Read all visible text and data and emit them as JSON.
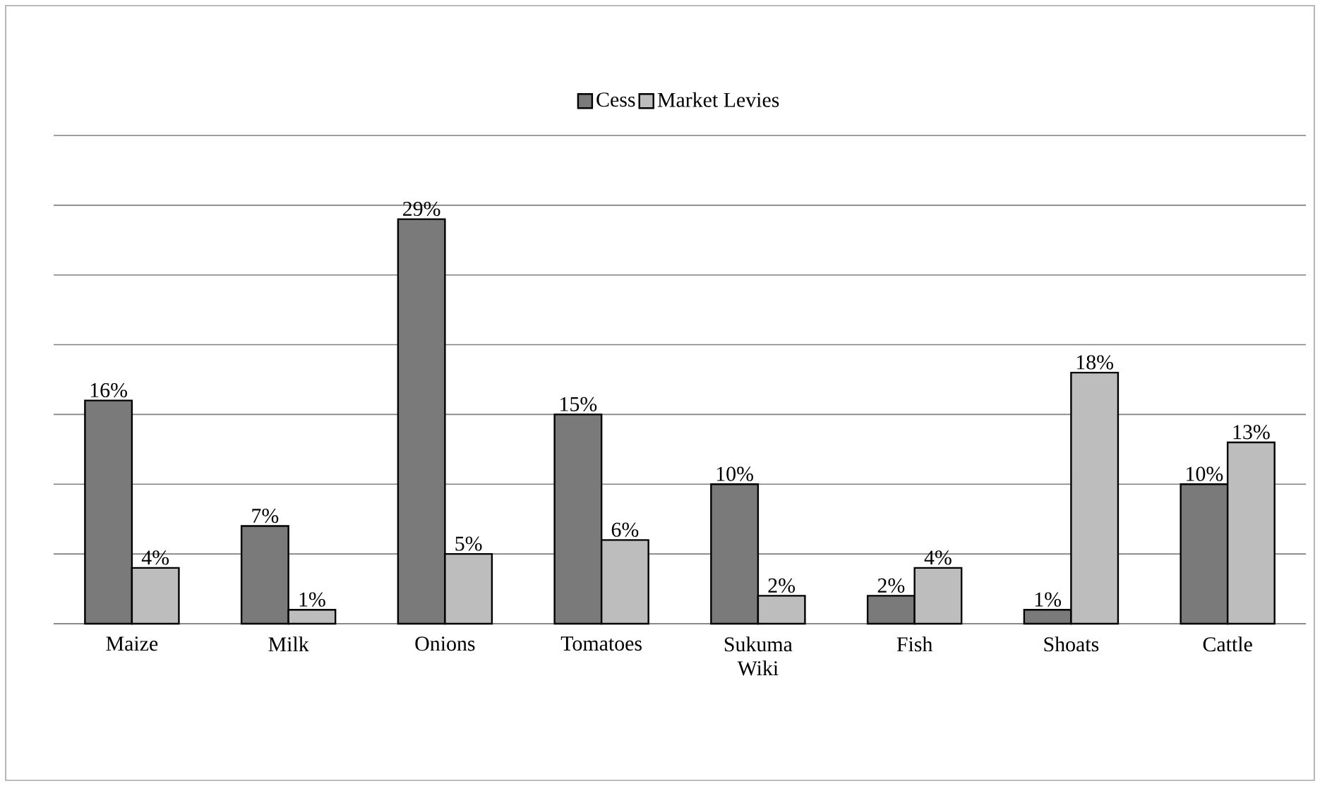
{
  "chart_data": {
    "type": "bar",
    "categories": [
      "Maize",
      "Milk",
      "Onions",
      "Tomatoes",
      "Sukuma Wiki",
      "Fish",
      "Shoats",
      "Cattle"
    ],
    "series": [
      {
        "name": "Cess",
        "color": "#7a7a7a",
        "values": [
          16,
          7,
          29,
          15,
          10,
          2,
          1,
          10
        ],
        "value_labels": [
          "16%",
          "7%",
          "29%",
          "15%",
          "10%",
          "2%",
          "1%",
          "10%"
        ]
      },
      {
        "name": "Market Levies",
        "color": "#bdbdbd",
        "values": [
          4,
          1,
          5,
          6,
          2,
          4,
          18,
          13
        ],
        "value_labels": [
          "4%",
          "1%",
          "5%",
          "6%",
          "2%",
          "4%",
          "18%",
          "13%"
        ]
      }
    ],
    "ylim": [
      0,
      35
    ],
    "yticks": [
      {
        "value": 0,
        "label": null
      },
      {
        "value": 5,
        "label": null
      },
      {
        "value": 10,
        "label": null
      },
      {
        "value": 15,
        "label": null
      },
      {
        "value": 20,
        "label": null
      },
      {
        "value": 25,
        "label": null
      },
      {
        "value": 30,
        "label": null
      },
      {
        "value": 35,
        "label": null
      }
    ],
    "tick_labels": "x",
    "grid": "y",
    "legend": "top"
  }
}
